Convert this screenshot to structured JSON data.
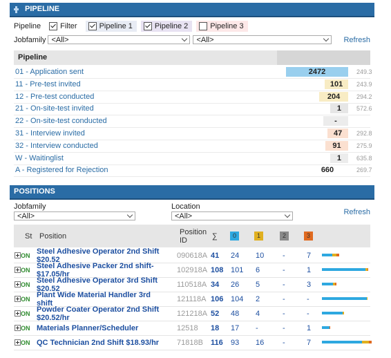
{
  "pipeline": {
    "title": "PIPELINE",
    "filter_label": "Pipeline",
    "checks": [
      {
        "label": "Filter",
        "checked": true
      },
      {
        "label": "Pipeline 1",
        "checked": true
      },
      {
        "label": "Pipeline 2",
        "checked": true
      },
      {
        "label": "Pipeline 3",
        "checked": false
      }
    ],
    "jobfamily_label": "Jobfamily",
    "jobfamily_value": "<All>",
    "second_select_value": "<All>",
    "refresh": "Refresh",
    "column_header": "Pipeline",
    "rows": [
      {
        "label": "01 - Application sent",
        "value": "2472",
        "score": "249.3",
        "color": "#99cfee"
      },
      {
        "label": "11 - Pre-test invited",
        "value": "101",
        "score": "243.9",
        "color": "#f8ecc4"
      },
      {
        "label": "12 - Pre-test conducted",
        "value": "204",
        "score": "294.2",
        "color": "#f8ecc4"
      },
      {
        "label": "21 - On-site-test invited",
        "value": "1",
        "score": "572.6",
        "color": "#e6e6e6"
      },
      {
        "label": "22 - On-site-test conducted",
        "value": "-",
        "score": "",
        "color": "#ececec"
      },
      {
        "label": "31 - Interview invited",
        "value": "47",
        "score": "292.8",
        "color": "#fbe0d0"
      },
      {
        "label": "32 - Interview conducted",
        "value": "91",
        "score": "275.9",
        "color": "#fbe0d0"
      },
      {
        "label": "W - Waitinglist",
        "value": "1",
        "score": "635.8",
        "color": "#ececec"
      },
      {
        "label": "A - Registered for Rejection",
        "value": "660",
        "score": "269.7",
        "color": "#ffffff"
      }
    ]
  },
  "positions": {
    "title": "POSITIONS",
    "jobfamily_label": "Jobfamily",
    "jobfamily_value": "<All>",
    "location_label": "Location",
    "location_value": "<All>",
    "refresh": "Refresh",
    "headers": {
      "st": "St",
      "position": "Position",
      "position_id": "Position ID",
      "sum": "∑",
      "c0": "0",
      "c1": "1",
      "c2": "2",
      "c3": "3"
    },
    "header_colors": {
      "c0": "#2ea8e0",
      "c1": "#e0b020",
      "c2": "#8a8a8a",
      "c3": "#e06a20"
    },
    "rows": [
      {
        "status": "ON",
        "name": "Steel Adhesive Operator 2nd Shift $20.52",
        "id": "090618A",
        "sum": "41",
        "c0": "24",
        "c1": "10",
        "c2": "-",
        "c3": "7"
      },
      {
        "status": "ON",
        "name": "Steel Adhesive Packer 2nd shift- $17.05/hr",
        "id": "102918A",
        "sum": "108",
        "c0": "101",
        "c1": "6",
        "c2": "-",
        "c3": "1"
      },
      {
        "status": "ON",
        "name": "Steel Adhesive Operator 3rd Shift $20.52",
        "id": "110518A",
        "sum": "34",
        "c0": "26",
        "c1": "5",
        "c2": "-",
        "c3": "3"
      },
      {
        "status": "ON",
        "name": "Plant Wide Material Handler 3rd shift",
        "id": "121118A",
        "sum": "106",
        "c0": "104",
        "c1": "2",
        "c2": "-",
        "c3": "-"
      },
      {
        "status": "ON",
        "name": "Powder Coater Operator 2nd Shift $20.52/hr",
        "id": "121218A",
        "sum": "52",
        "c0": "48",
        "c1": "4",
        "c2": "-",
        "c3": "-"
      },
      {
        "status": "ON",
        "name": "Materials Planner/Scheduler",
        "id": "12518",
        "sum": "18",
        "c0": "17",
        "c1": "-",
        "c2": "-",
        "c3": "1"
      },
      {
        "status": "ON",
        "name": "QC Technician 2nd Shift $18.93/hr",
        "id": "71818B",
        "sum": "116",
        "c0": "93",
        "c1": "16",
        "c2": "-",
        "c3": "7"
      }
    ]
  }
}
